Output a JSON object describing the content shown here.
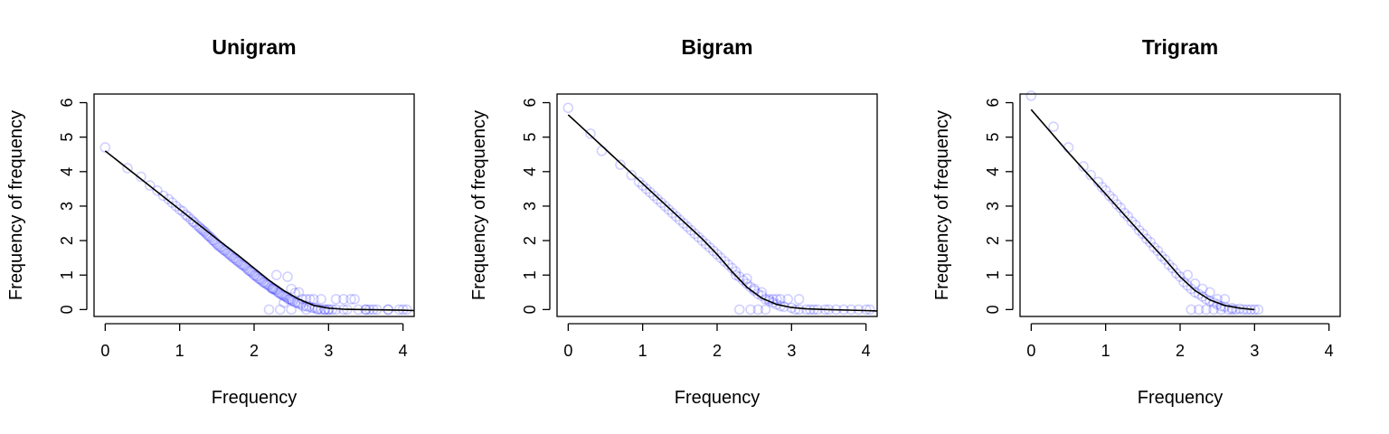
{
  "figure": {
    "colors": {
      "points": "#0000ff",
      "fit_line": "#000000",
      "axes": "#000000",
      "background": "#ffffff"
    }
  },
  "chart_data": [
    {
      "type": "scatter",
      "title": "Unigram",
      "xlabel": "Frequency",
      "ylabel": "Frequency of frequency",
      "xlim": [
        -0.15,
        4.15
      ],
      "ylim": [
        -0.2,
        6.25
      ],
      "x_ticks": [
        0,
        1,
        2,
        3,
        4
      ],
      "y_ticks": [
        0,
        1,
        2,
        3,
        4,
        5,
        6
      ],
      "grid": false,
      "points_x": [
        0,
        0.3,
        0.48,
        0.6,
        0.7,
        0.78,
        0.85,
        0.9,
        0.95,
        1.0,
        1.04,
        1.08,
        1.11,
        1.15,
        1.18,
        1.2,
        1.23,
        1.26,
        1.28,
        1.3,
        1.32,
        1.34,
        1.36,
        1.38,
        1.4,
        1.42,
        1.44,
        1.46,
        1.48,
        1.5,
        1.52,
        1.54,
        1.56,
        1.58,
        1.6,
        1.62,
        1.64,
        1.66,
        1.68,
        1.7,
        1.72,
        1.74,
        1.76,
        1.78,
        1.8,
        1.82,
        1.84,
        1.86,
        1.88,
        1.9,
        1.92,
        1.94,
        1.96,
        1.98,
        2.0,
        2.02,
        2.04,
        2.06,
        2.08,
        2.1,
        2.12,
        2.14,
        2.16,
        2.18,
        2.2,
        2.22,
        2.24,
        2.26,
        2.28,
        2.3,
        2.32,
        2.34,
        2.36,
        2.38,
        2.4,
        2.42,
        2.44,
        2.46,
        2.48,
        2.5,
        2.52,
        2.55,
        2.58,
        2.6,
        2.63,
        2.66,
        2.7,
        2.74,
        2.78,
        2.82,
        2.86,
        2.9,
        2.95,
        3.0,
        3.1,
        3.2,
        3.35,
        3.5,
        3.65,
        3.8,
        3.95,
        4.05,
        2.3,
        2.45,
        2.5,
        2.6,
        2.7,
        2.8,
        2.9,
        3.1,
        3.3,
        3.5,
        2.2,
        2.35,
        2.5,
        2.7,
        3.0,
        3.25,
        3.55,
        2.25,
        2.4,
        2.55,
        2.65,
        2.75,
        2.85,
        2.95,
        3.05,
        3.2,
        3.4,
        3.6,
        3.8,
        4.0
      ],
      "points_y": [
        4.7,
        4.1,
        3.85,
        3.6,
        3.45,
        3.3,
        3.2,
        3.1,
        3.0,
        2.9,
        2.85,
        2.75,
        2.7,
        2.62,
        2.55,
        2.52,
        2.45,
        2.4,
        2.35,
        2.32,
        2.28,
        2.25,
        2.2,
        2.15,
        2.12,
        2.08,
        2.02,
        2.0,
        1.95,
        1.9,
        1.86,
        1.82,
        1.8,
        1.75,
        1.72,
        1.7,
        1.65,
        1.62,
        1.58,
        1.55,
        1.5,
        1.48,
        1.44,
        1.4,
        1.38,
        1.33,
        1.3,
        1.28,
        1.25,
        1.2,
        1.15,
        1.12,
        1.1,
        1.06,
        1.0,
        0.98,
        0.95,
        0.9,
        0.88,
        0.85,
        0.8,
        0.78,
        0.75,
        0.72,
        0.7,
        0.65,
        0.62,
        0.6,
        0.58,
        0.55,
        0.5,
        0.48,
        0.45,
        0.42,
        0.4,
        0.38,
        0.35,
        0.3,
        0.3,
        0.28,
        0.25,
        0.2,
        0.2,
        0.18,
        0.15,
        0.1,
        0.1,
        0.08,
        0.05,
        0.05,
        0.02,
        0.0,
        0.0,
        0.0,
        0.0,
        0.3,
        0.3,
        0.0,
        0.0,
        0.0,
        0.0,
        0.0,
        1.0,
        0.95,
        0.6,
        0.5,
        0.3,
        0.3,
        0.3,
        0.3,
        0.3,
        0.0,
        0.0,
        0.0,
        0.0,
        0.0,
        0.0,
        0.0,
        0.0,
        0.6,
        0.2,
        0.48,
        0.3,
        0.3,
        0.0,
        0.0,
        0.0,
        0.0,
        0.0,
        0.0,
        0.0,
        0.0
      ],
      "fit_line_x": [
        0,
        0.5,
        1.0,
        1.5,
        1.8,
        2.0,
        2.2,
        2.4,
        2.6,
        2.8,
        3.0,
        3.2,
        3.5,
        4.0,
        4.15
      ],
      "fit_line_y": [
        4.6,
        3.75,
        2.9,
        2.05,
        1.55,
        1.2,
        0.85,
        0.55,
        0.3,
        0.12,
        0.04,
        0.01,
        0.0,
        -0.02,
        -0.03
      ]
    },
    {
      "type": "scatter",
      "title": "Bigram",
      "xlabel": "Frequency",
      "ylabel": "Frequency of frequency",
      "xlim": [
        -0.15,
        4.15
      ],
      "ylim": [
        -0.2,
        6.25
      ],
      "x_ticks": [
        0,
        1,
        2,
        3,
        4
      ],
      "y_ticks": [
        0,
        1,
        2,
        3,
        4,
        5,
        6
      ],
      "grid": false,
      "points_x": [
        0,
        0.3,
        0.45,
        0.7,
        0.85,
        0.95,
        1.0,
        1.05,
        1.1,
        1.15,
        1.2,
        1.25,
        1.3,
        1.35,
        1.4,
        1.45,
        1.5,
        1.55,
        1.6,
        1.65,
        1.7,
        1.75,
        1.8,
        1.85,
        1.9,
        1.95,
        2.0,
        2.05,
        2.1,
        2.15,
        2.2,
        2.25,
        2.3,
        2.35,
        2.4,
        2.45,
        2.5,
        2.55,
        2.6,
        2.65,
        2.7,
        2.75,
        2.8,
        2.85,
        2.9,
        3.0,
        3.1,
        3.2,
        3.35,
        3.5,
        3.7,
        3.9,
        4.05,
        2.25,
        2.4,
        2.5,
        2.6,
        2.7,
        2.8,
        2.95,
        3.1,
        3.3,
        2.3,
        2.45,
        2.55,
        2.65,
        2.75,
        2.85,
        3.05,
        3.25,
        3.45,
        3.6,
        3.8,
        4.0
      ],
      "points_y": [
        5.85,
        5.1,
        4.6,
        4.2,
        3.9,
        3.7,
        3.6,
        3.5,
        3.4,
        3.3,
        3.2,
        3.1,
        3.0,
        2.9,
        2.8,
        2.7,
        2.6,
        2.5,
        2.4,
        2.3,
        2.2,
        2.1,
        2.0,
        1.9,
        1.8,
        1.7,
        1.6,
        1.5,
        1.4,
        1.3,
        1.2,
        1.1,
        0.95,
        0.85,
        0.75,
        0.65,
        0.55,
        0.45,
        0.4,
        0.3,
        0.25,
        0.2,
        0.15,
        0.1,
        0.08,
        0.05,
        0.0,
        0.0,
        0.0,
        0.0,
        0.0,
        0.0,
        0.0,
        1.0,
        0.9,
        0.6,
        0.5,
        0.3,
        0.3,
        0.3,
        0.3,
        0.0,
        0.0,
        0.0,
        0.0,
        0.0,
        0.3,
        0.3,
        0.0,
        0.0,
        0.0,
        0.0,
        0.0,
        0.0
      ],
      "fit_line_x": [
        0,
        0.5,
        1.0,
        1.5,
        1.8,
        2.0,
        2.2,
        2.4,
        2.6,
        2.8,
        3.0,
        3.2,
        3.5,
        4.0,
        4.15
      ],
      "fit_line_y": [
        5.65,
        4.65,
        3.65,
        2.65,
        2.05,
        1.6,
        1.1,
        0.65,
        0.33,
        0.15,
        0.06,
        0.02,
        0.0,
        -0.03,
        -0.04
      ]
    },
    {
      "type": "scatter",
      "title": "Trigram",
      "xlabel": "Frequency",
      "ylabel": "Frequency of frequency",
      "xlim": [
        -0.15,
        4.15
      ],
      "ylim": [
        -0.2,
        6.25
      ],
      "x_ticks": [
        0,
        1,
        2,
        3,
        4
      ],
      "y_ticks": [
        0,
        1,
        2,
        3,
        4,
        5,
        6
      ],
      "grid": false,
      "points_x": [
        0,
        0.3,
        0.5,
        0.7,
        0.8,
        0.9,
        0.95,
        1.0,
        1.05,
        1.1,
        1.15,
        1.2,
        1.25,
        1.3,
        1.35,
        1.4,
        1.45,
        1.5,
        1.55,
        1.6,
        1.65,
        1.7,
        1.75,
        1.8,
        1.85,
        1.9,
        1.95,
        2.0,
        2.05,
        2.1,
        2.15,
        2.2,
        2.25,
        2.3,
        2.35,
        2.4,
        2.45,
        2.5,
        2.55,
        2.6,
        2.7,
        2.8,
        2.9,
        3.0,
        2.1,
        2.2,
        2.3,
        2.4,
        2.5,
        2.6,
        2.7,
        2.15,
        2.25,
        2.35,
        2.45,
        2.55,
        2.65,
        2.75,
        2.85,
        2.95,
        3.05
      ],
      "points_y": [
        6.2,
        5.3,
        4.7,
        4.15,
        3.9,
        3.7,
        3.55,
        3.45,
        3.3,
        3.2,
        3.05,
        2.95,
        2.8,
        2.7,
        2.55,
        2.45,
        2.3,
        2.2,
        2.05,
        1.95,
        1.8,
        1.7,
        1.55,
        1.45,
        1.3,
        1.2,
        1.05,
        0.95,
        0.8,
        0.7,
        0.6,
        0.5,
        0.45,
        0.38,
        0.3,
        0.25,
        0.2,
        0.15,
        0.1,
        0.08,
        0.04,
        0.02,
        0.0,
        0.0,
        1.0,
        0.75,
        0.6,
        0.5,
        0.3,
        0.3,
        0.0,
        0.0,
        0.0,
        0.0,
        0.0,
        0.0,
        0.0,
        0.0,
        0.0,
        0.0,
        0.0
      ],
      "fit_line_x": [
        0,
        0.5,
        1.0,
        1.5,
        1.8,
        2.0,
        2.2,
        2.4,
        2.6,
        2.8,
        3.0
      ],
      "fit_line_y": [
        5.8,
        4.55,
        3.35,
        2.15,
        1.45,
        0.95,
        0.55,
        0.28,
        0.12,
        0.04,
        0.0
      ]
    }
  ]
}
